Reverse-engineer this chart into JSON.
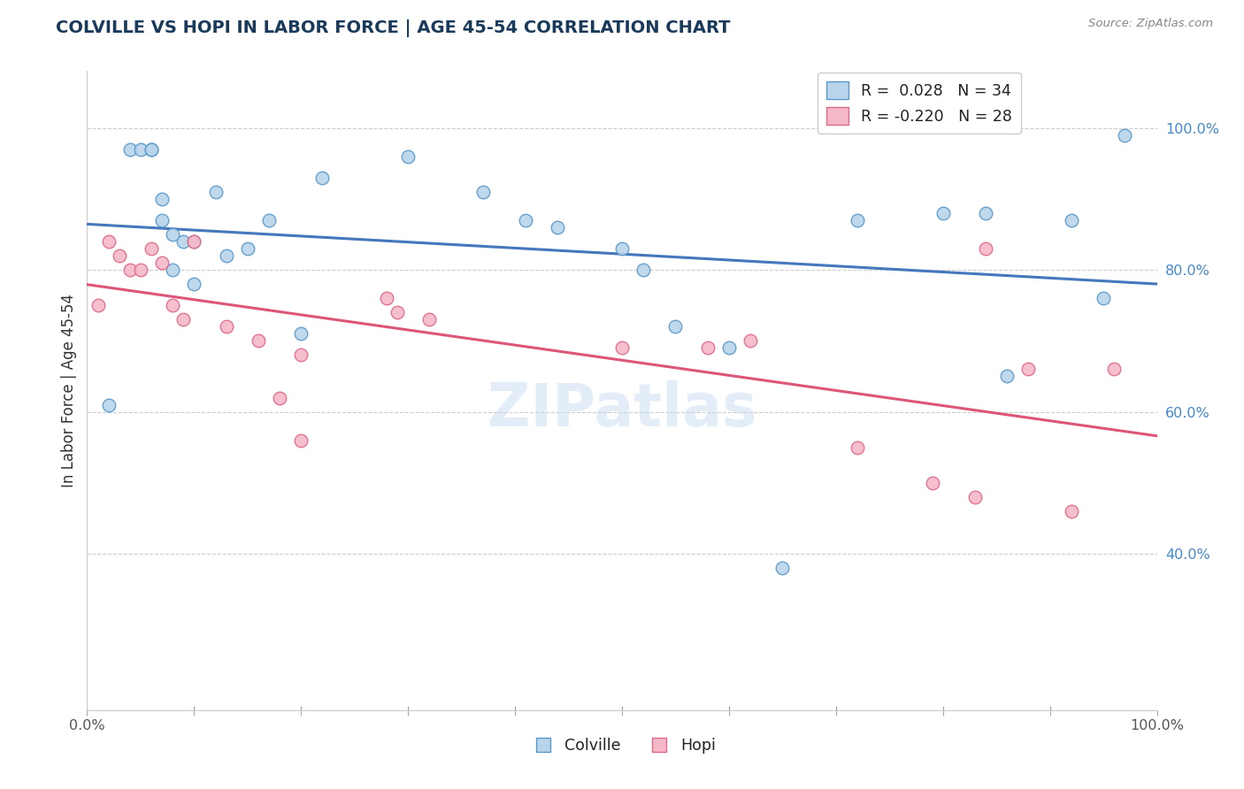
{
  "title": "COLVILLE VS HOPI IN LABOR FORCE | AGE 45-54 CORRELATION CHART",
  "source": "Source: ZipAtlas.com",
  "ylabel": "In Labor Force | Age 45-54",
  "xlim": [
    0.0,
    1.0
  ],
  "ylim": [
    0.18,
    1.08
  ],
  "xtick_positions": [
    0.0,
    0.1,
    0.2,
    0.3,
    0.4,
    0.5,
    0.6,
    0.7,
    0.8,
    0.9,
    1.0
  ],
  "xtick_labels": [
    "0.0%",
    "",
    "",
    "",
    "",
    "",
    "",
    "",
    "",
    "",
    "100.0%"
  ],
  "ytick_positions_right": [
    1.0,
    0.8,
    0.6,
    0.4
  ],
  "ytick_labels_right": [
    "100.0%",
    "80.0%",
    "60.0%",
    "40.0%"
  ],
  "colville_fill": "#b8d4ea",
  "colville_edge": "#5899cc",
  "hopi_fill": "#f4b8c8",
  "hopi_edge": "#e06888",
  "blue_line_color": "#4477bb",
  "pink_line_color": "#dd5577",
  "legend_R_colville": "R =  0.028   N = 34",
  "legend_R_hopi": "R = -0.220   N = 28",
  "legend_label_colville": "Colville",
  "legend_label_hopi": "Hopi",
  "colville_x": [
    0.02,
    0.04,
    0.05,
    0.06,
    0.06,
    0.07,
    0.07,
    0.08,
    0.08,
    0.09,
    0.1,
    0.1,
    0.12,
    0.13,
    0.15,
    0.17,
    0.2,
    0.22,
    0.3,
    0.37,
    0.41,
    0.44,
    0.5,
    0.52,
    0.55,
    0.6,
    0.65,
    0.72,
    0.8,
    0.84,
    0.86,
    0.92,
    0.95,
    0.97
  ],
  "colville_y": [
    0.61,
    0.97,
    0.97,
    0.97,
    0.97,
    0.9,
    0.87,
    0.85,
    0.8,
    0.84,
    0.78,
    0.84,
    0.91,
    0.82,
    0.83,
    0.87,
    0.71,
    0.93,
    0.96,
    0.91,
    0.87,
    0.86,
    0.83,
    0.8,
    0.72,
    0.69,
    0.38,
    0.87,
    0.88,
    0.88,
    0.65,
    0.87,
    0.76,
    0.99
  ],
  "hopi_x": [
    0.01,
    0.02,
    0.03,
    0.04,
    0.05,
    0.06,
    0.07,
    0.08,
    0.09,
    0.1,
    0.13,
    0.16,
    0.18,
    0.2,
    0.2,
    0.28,
    0.29,
    0.32,
    0.5,
    0.58,
    0.62,
    0.72,
    0.79,
    0.83,
    0.84,
    0.88,
    0.92,
    0.96
  ],
  "hopi_y": [
    0.75,
    0.84,
    0.82,
    0.8,
    0.8,
    0.83,
    0.81,
    0.75,
    0.73,
    0.84,
    0.72,
    0.7,
    0.62,
    0.68,
    0.56,
    0.76,
    0.74,
    0.73,
    0.69,
    0.69,
    0.7,
    0.55,
    0.5,
    0.48,
    0.83,
    0.66,
    0.46,
    0.66
  ],
  "bg_color": "#ffffff",
  "grid_color": "#cccccc",
  "grid_linestyle": "--",
  "title_color": "#1a3a5c",
  "source_color": "#888888",
  "ylabel_color": "#333333",
  "tick_color": "#555555",
  "right_tick_color": "#4488cc",
  "marker_size": 110,
  "line_width": 2.2,
  "watermark_text": "ZIPatlas",
  "watermark_color": "#c8ddf0",
  "watermark_alpha": 0.5,
  "watermark_fontsize": 48
}
